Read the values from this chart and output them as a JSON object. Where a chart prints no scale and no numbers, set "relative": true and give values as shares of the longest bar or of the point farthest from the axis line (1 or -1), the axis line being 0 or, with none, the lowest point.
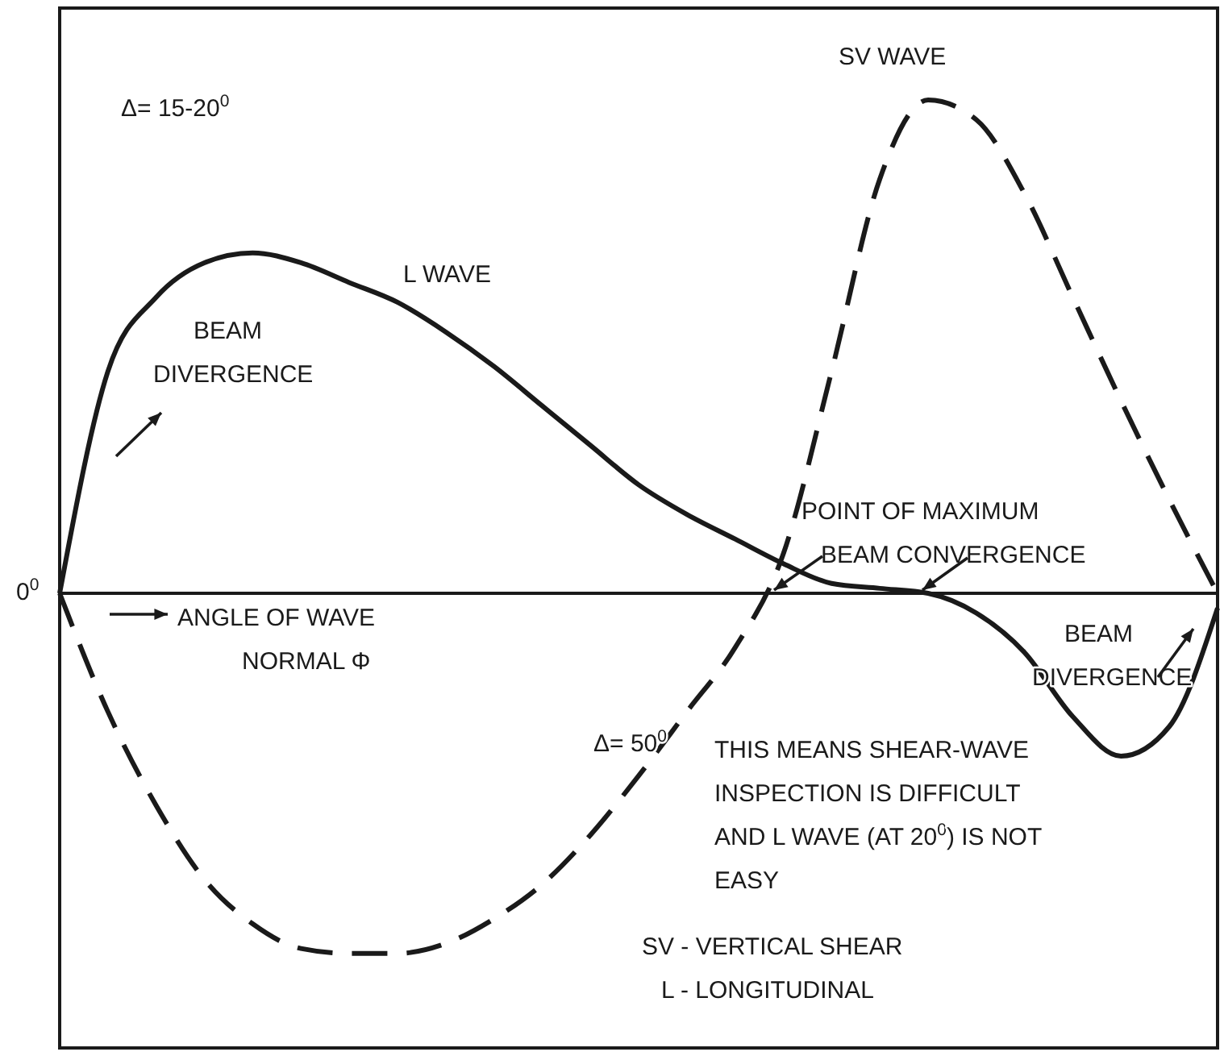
{
  "chart_data": {
    "type": "line",
    "relative": true,
    "legend": false,
    "marker": "none",
    "categories": [
      null,
      null,
      null,
      null,
      null,
      null,
      null,
      null,
      null,
      null,
      null,
      null,
      null,
      null,
      null,
      null,
      null,
      null,
      null,
      null,
      null,
      null,
      null,
      null,
      null
    ],
    "series": [
      {
        "name": "L WAVE",
        "color": "#1a1a1a",
        "line_style": "solid",
        "values": [
          0,
          0.45,
          0.6,
          0.67,
          0.69,
          0.67,
          0.63,
          0.59,
          0.53,
          0.46,
          0.38,
          0.3,
          0.22,
          0.16,
          0.11,
          0.06,
          0.02,
          0.01,
          0,
          -0.04,
          -0.12,
          -0.25,
          -0.33,
          -0.27,
          -0.03
        ]
      },
      {
        "name": "SV WAVE",
        "color": "#1a1a1a",
        "line_style": "dashed",
        "values": [
          0,
          -0.24,
          -0.43,
          -0.58,
          -0.67,
          -0.72,
          -0.73,
          -0.73,
          -0.71,
          -0.66,
          -0.59,
          -0.49,
          -0.37,
          -0.24,
          -0.11,
          0.08,
          0.45,
          0.84,
          1,
          0.96,
          0.81,
          0.6,
          0.39,
          0.19,
          0
        ]
      }
    ],
    "annotations": [
      "Δ= 15-20$^{0}$",
      "BEAM\nDIVERGENCE",
      "POINT OF MAXIMUM\nBEAM CONVERGENCE",
      "0$^{0}$",
      "ANGLE OF WAVE\nNORMAL Φ",
      "BEAM\nDIVERGENCE",
      "Δ= 50$^{0}$",
      "THIS MEANS SHEAR-WAVE\nINSPECTION IS DIFFICULT\nAND L WAVE (AT 20$^{0}$) IS NOT\nEASY",
      "SV - VERTICAL SHEAR\nL - LONGITUDINAL"
    ]
  }
}
